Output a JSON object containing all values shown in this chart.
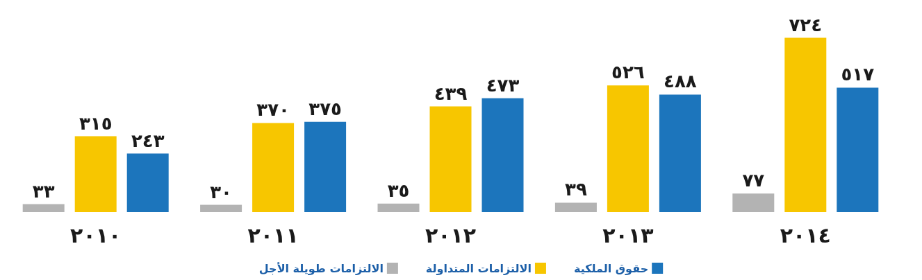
{
  "chart_data": {
    "type": "bar",
    "categories": [
      "٢٠١٠",
      "٢٠١١",
      "٢٠١٢",
      "٢٠١٣",
      "٢٠١٤"
    ],
    "series": [
      {
        "name": "الالتزامات طويلة الأجل",
        "color": "#b3b3b3",
        "values": [
          33,
          30,
          35,
          39,
          77
        ],
        "value_labels": [
          "٣٣",
          "٣٠",
          "٣٥",
          "٣٩",
          "٧٧"
        ]
      },
      {
        "name": "الالتزامات المتداولة",
        "color": "#f7c600",
        "values": [
          315,
          370,
          439,
          526,
          724
        ],
        "value_labels": [
          "٣١٥",
          "٣٧٠",
          "٤٣٩",
          "٥٢٦",
          "٧٢٤"
        ]
      },
      {
        "name": "حقوق الملكية",
        "color": "#1c75bc",
        "values": [
          243,
          375,
          473,
          488,
          517
        ],
        "value_labels": [
          "٢٤٣",
          "٣٧٥",
          "٤٧٣",
          "٤٨٨",
          "٥١٧"
        ]
      }
    ],
    "legend": "bottom"
  }
}
